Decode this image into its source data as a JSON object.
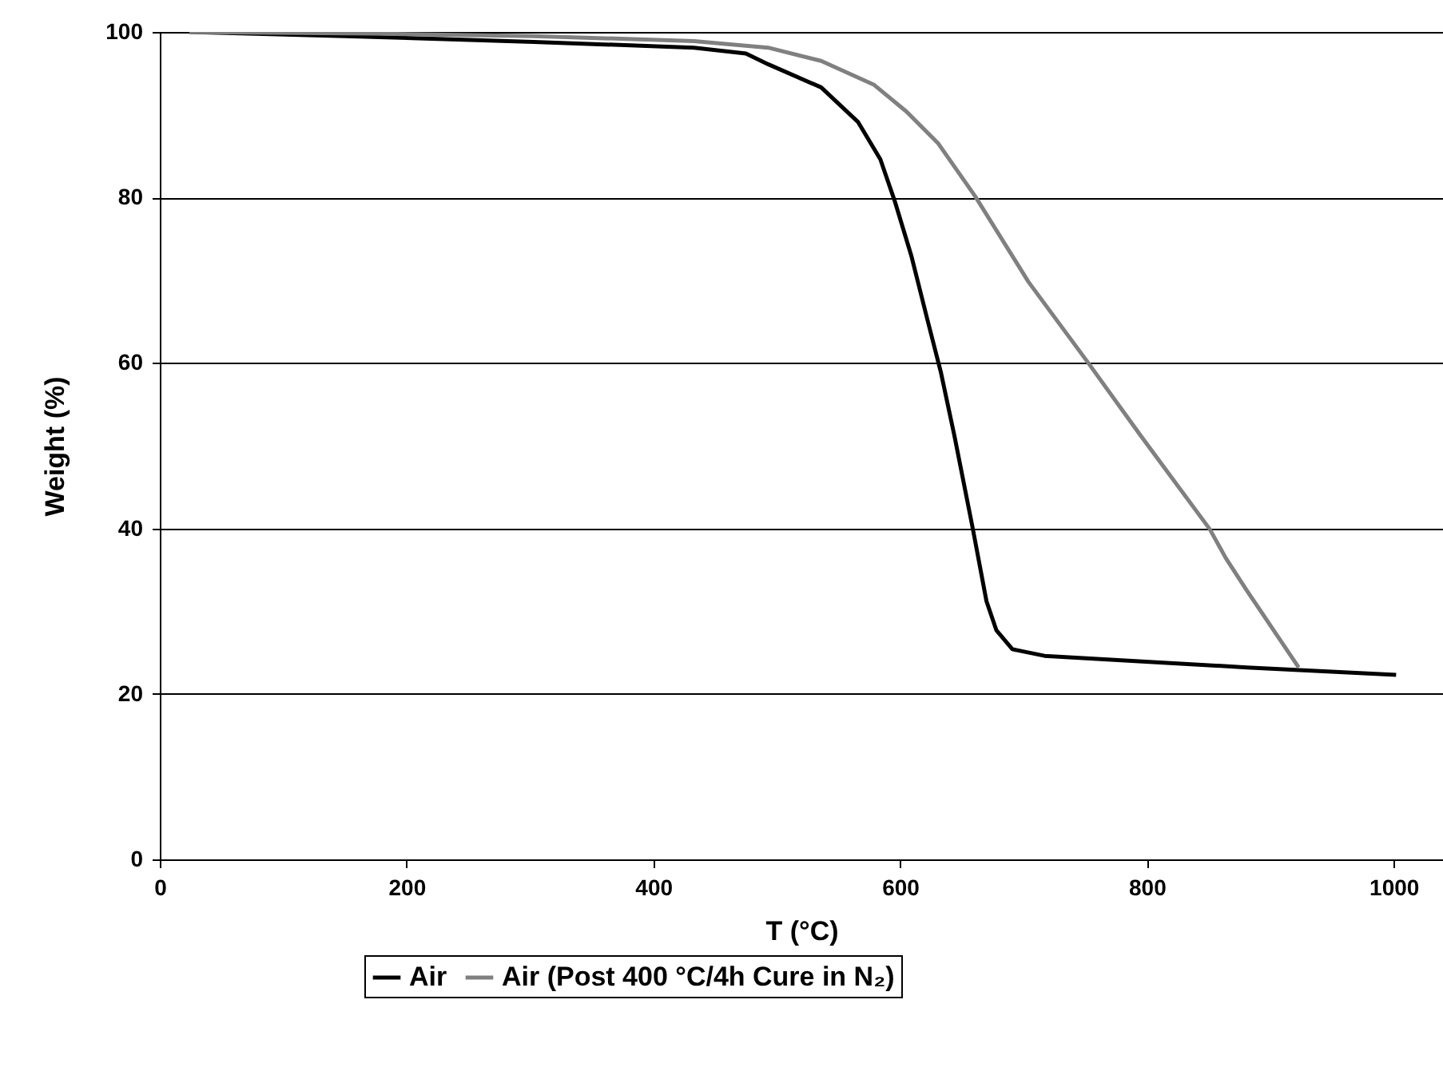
{
  "chart_data": {
    "type": "line",
    "xlabel": "T (°C)",
    "ylabel": "Weight (%)",
    "xlim": [
      0,
      1040
    ],
    "xticks": [
      0,
      200,
      400,
      600,
      800,
      1000
    ],
    "ylim": [
      0,
      100
    ],
    "yticks": [
      0,
      20,
      40,
      60,
      80,
      100
    ],
    "grid": "y",
    "legend": "bottom",
    "marker": "none",
    "line_style": "solid",
    "series": [
      {
        "name": "Air",
        "color": "#000000",
        "x": [
          24,
          150,
          303,
          433,
          475,
          493,
          536,
          566,
          584,
          596,
          609,
          622,
          633,
          644,
          659,
          670,
          678,
          691,
          717,
          881,
          1002
        ],
        "values": [
          100,
          99.5,
          98.8,
          98.1,
          97.4,
          96.1,
          93.3,
          89.1,
          84.6,
          79.4,
          73.0,
          65.3,
          58.9,
          51.2,
          39.9,
          31.2,
          27.7,
          25.4,
          24.6,
          23.2,
          22.3
        ]
      },
      {
        "name": "Air (Post 400 °C/4h Cure in N₂)",
        "color": "#808080",
        "x": [
          24,
          173,
          303,
          433,
          493,
          536,
          579,
          605,
          631,
          661,
          704,
          752,
          795,
          851,
          864,
          881,
          923
        ],
        "values": [
          100,
          99.8,
          99.5,
          98.9,
          98.1,
          96.5,
          93.6,
          90.4,
          86.5,
          80.1,
          69.8,
          60.1,
          51.2,
          39.9,
          36.4,
          32.5,
          23.2
        ]
      }
    ]
  }
}
